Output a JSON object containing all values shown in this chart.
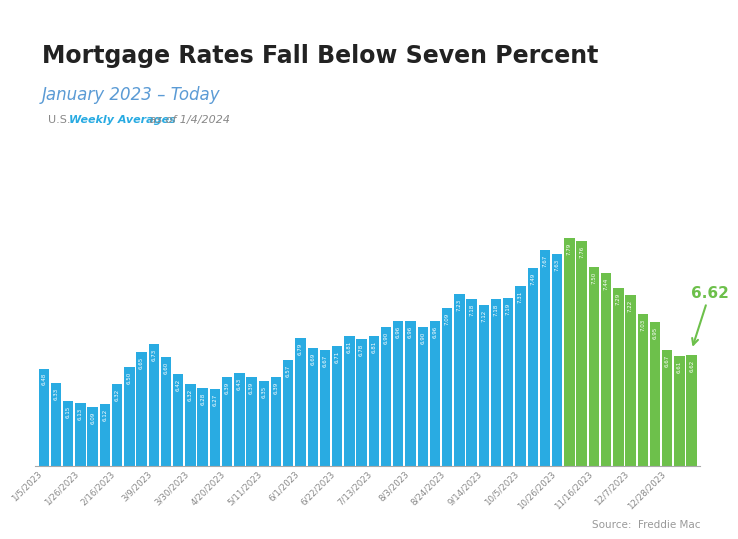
{
  "title": "Mortgage Rates Fall Below Seven Percent",
  "subtitle": "January 2023 – Today",
  "source": "Source:  Freddie Mac",
  "bar_values": [
    6.48,
    6.33,
    6.15,
    6.13,
    6.09,
    6.12,
    6.32,
    6.5,
    6.65,
    6.73,
    6.6,
    6.42,
    6.32,
    6.28,
    6.27,
    6.39,
    6.43,
    6.39,
    6.35,
    6.39,
    6.57,
    6.79,
    6.69,
    6.67,
    6.71,
    6.81,
    6.78,
    6.81,
    6.9,
    6.96,
    6.96,
    6.9,
    6.96,
    7.09,
    7.23,
    7.18,
    7.12,
    7.18,
    7.19,
    7.31,
    7.49,
    7.67,
    7.63,
    7.79,
    7.76,
    7.5,
    7.44,
    7.29,
    7.22,
    7.03,
    6.95,
    6.67,
    6.61,
    6.62
  ],
  "green_start_index": 43,
  "blue_color": "#29ABE2",
  "green_color": "#6DC04B",
  "background_color": "#FFFFFF",
  "highlight_value": "6.62",
  "highlight_color": "#6DC04B",
  "ylim_min": 5.5,
  "ylim_max": 8.35,
  "x_tick_labels": [
    "1/5/2023",
    "1/26/2023",
    "2/16/2023",
    "3/9/2023",
    "3/30/2023",
    "4/20/2023",
    "5/11/2023",
    "6/1/2023",
    "6/22/2023",
    "7/13/2023",
    "8/3/2023",
    "8/24/2023",
    "9/14/2023",
    "10/5/2023",
    "10/26/2023",
    "11/16/2023",
    "12/7/2023",
    "12/28/2023"
  ],
  "x_tick_indices": [
    0,
    3,
    6,
    9,
    12,
    15,
    18,
    21,
    24,
    27,
    30,
    33,
    36,
    39,
    42,
    45,
    48,
    51
  ],
  "top_bar_color": "#29ABE2",
  "top_bar_height": 6
}
